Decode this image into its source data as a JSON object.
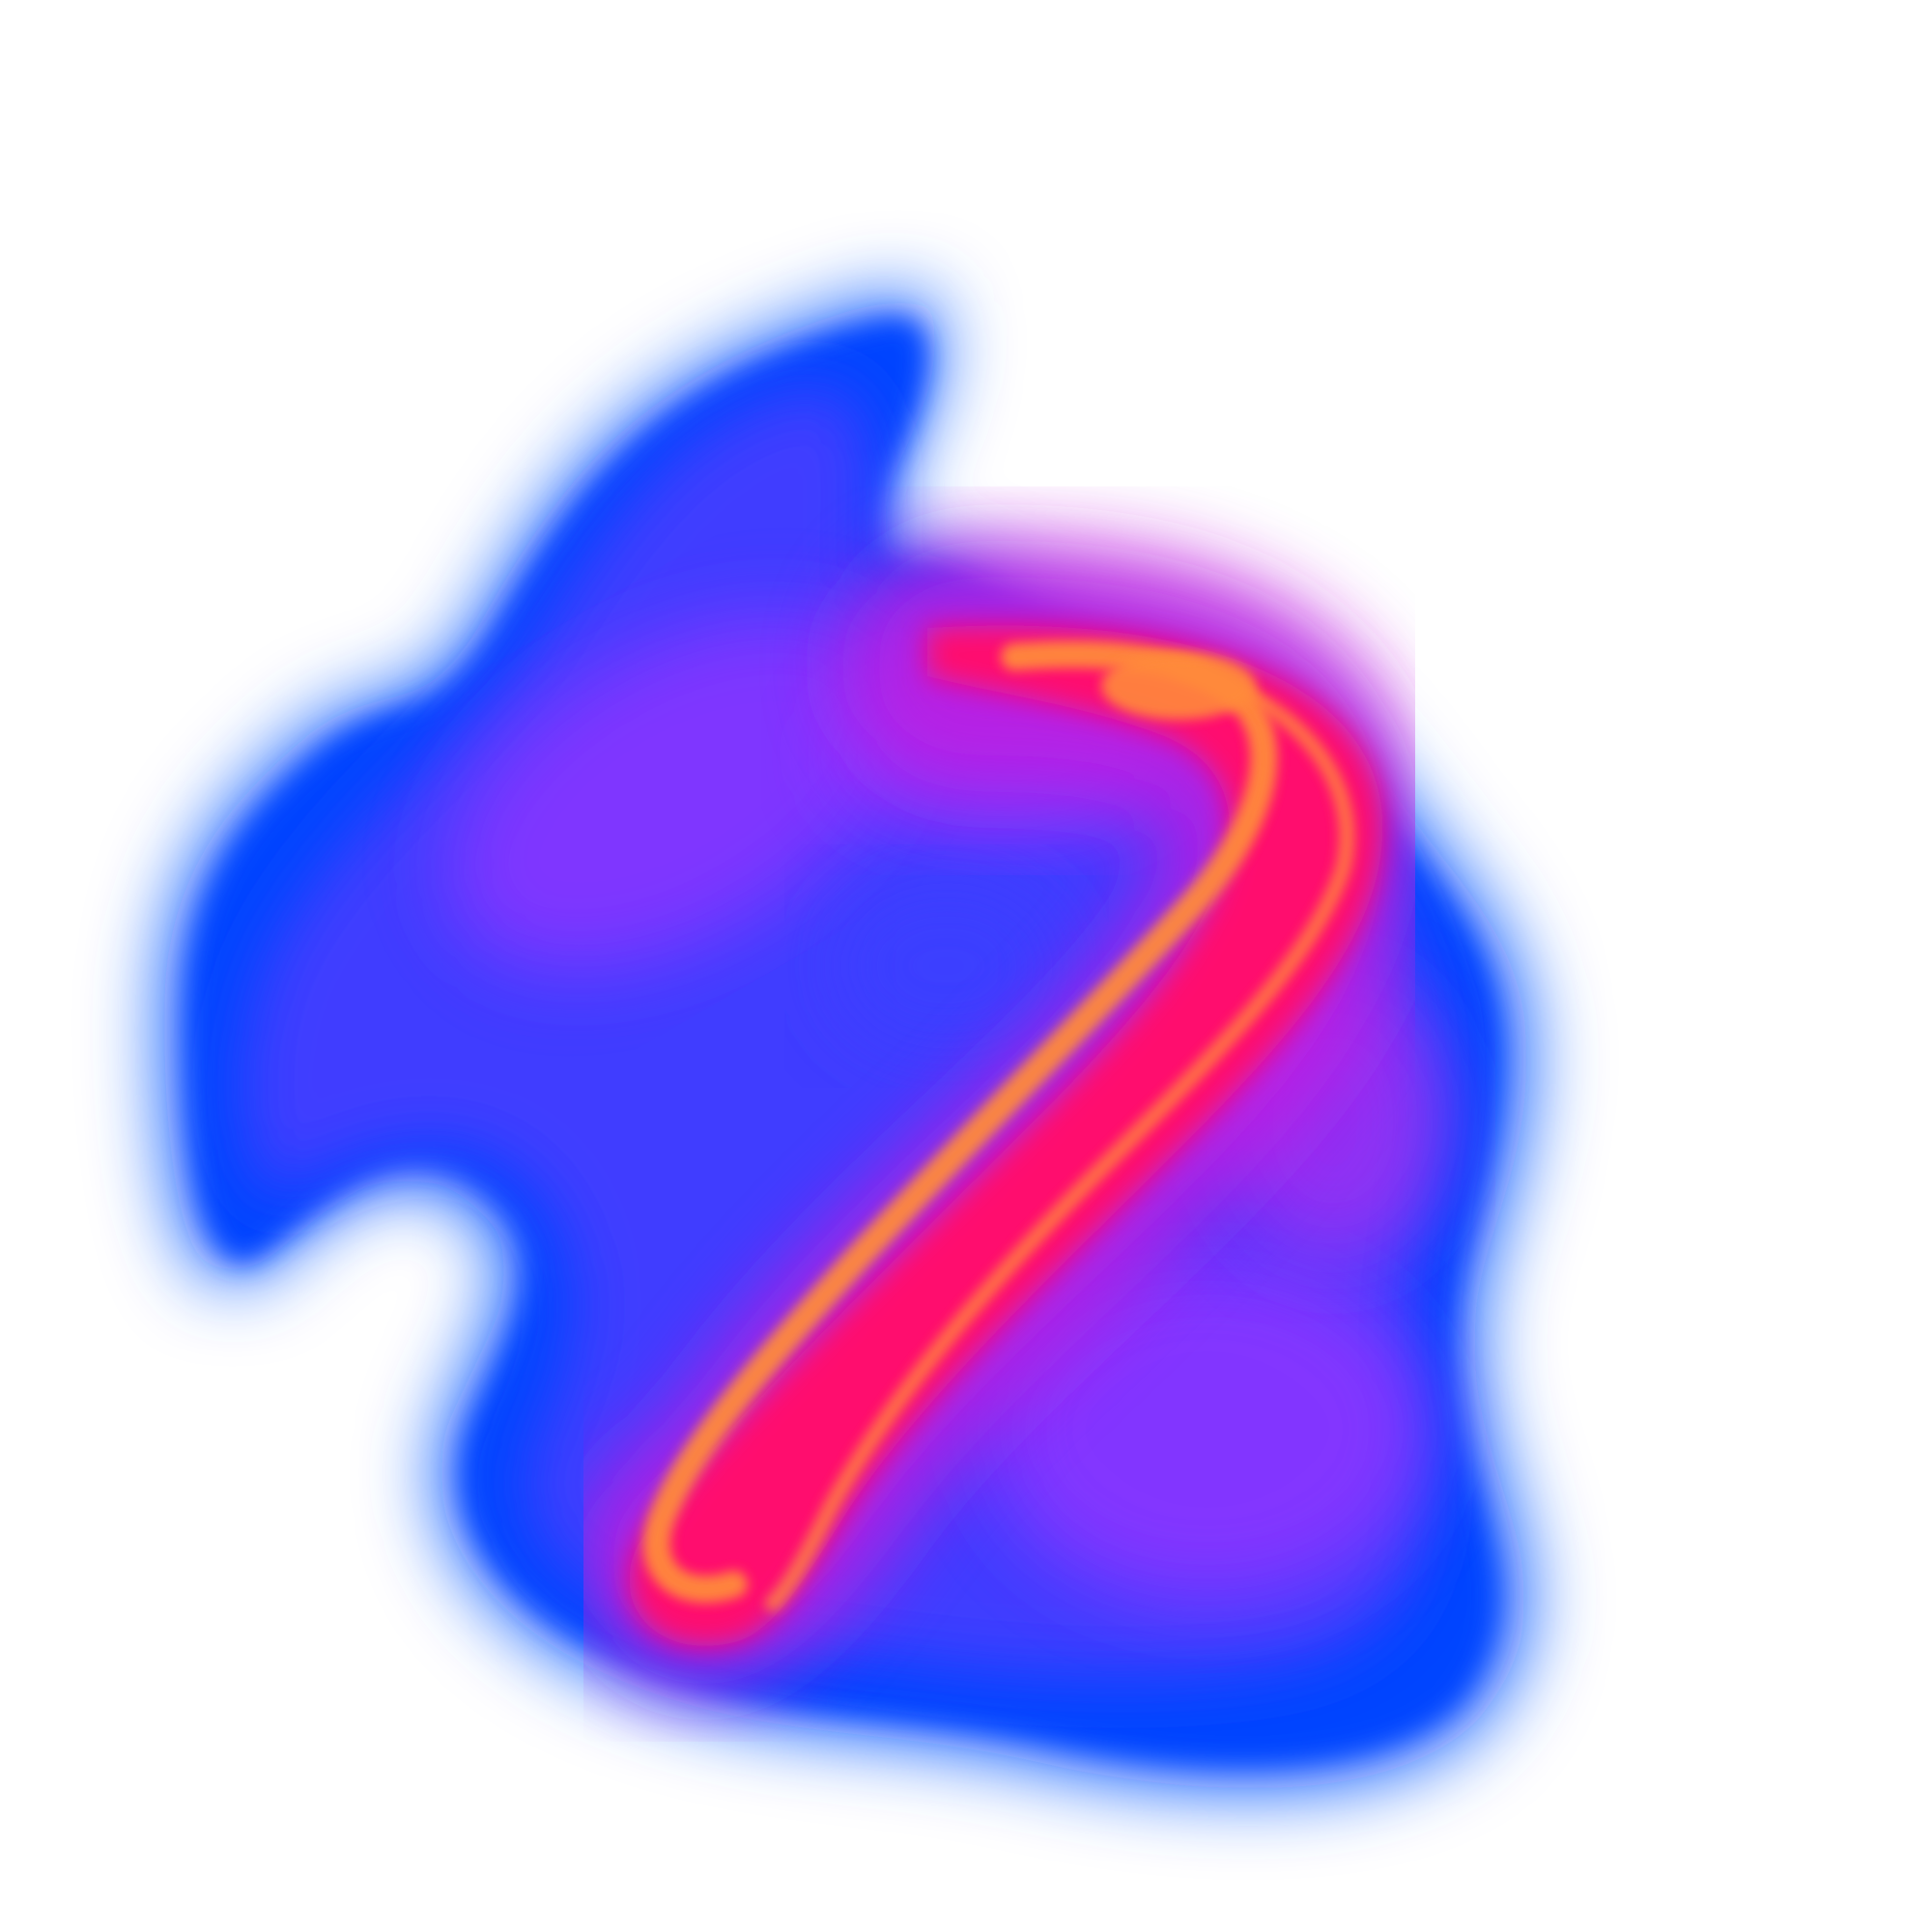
{
  "artwork": {
    "subject": "abstract-gradient-blob",
    "palette": {
      "background": "#ffffff",
      "outer": "#0044ff",
      "mid_blue": "#3d3dff",
      "violet": "#8a35ff",
      "magenta": "#c21fe0",
      "hot_pink": "#ff0a6e",
      "orange": "#ff8a3a"
    }
  }
}
